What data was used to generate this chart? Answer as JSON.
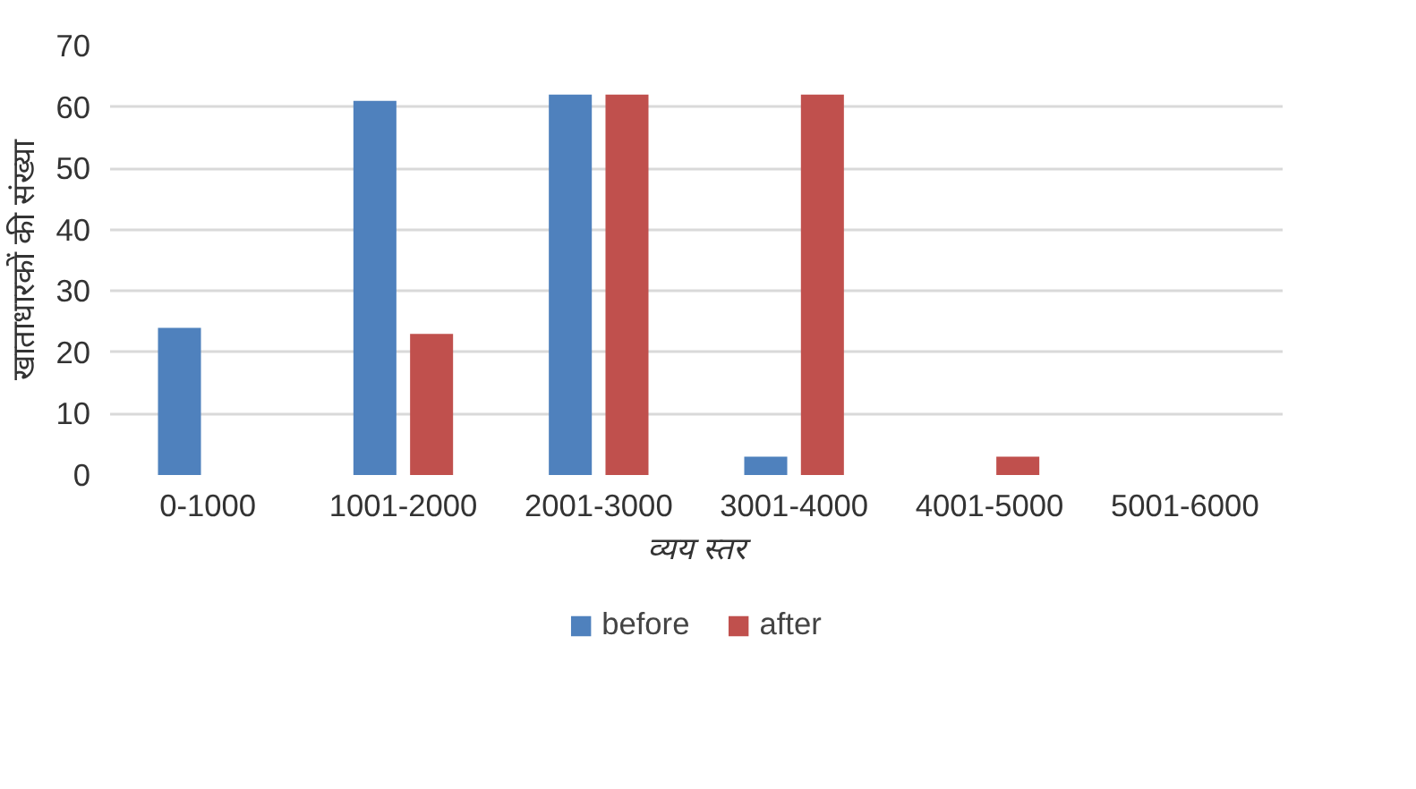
{
  "chart_data": {
    "type": "bar",
    "xlabel": "व्यय स्तर",
    "ylabel": "खाताधारकों की संख्या",
    "categories": [
      "0-1000",
      "1001-2000",
      "2001-3000",
      "3001-4000",
      "4001-5000",
      "5001-6000"
    ],
    "series": [
      {
        "name": "before",
        "color": "#4f81bd",
        "values": [
          24,
          61,
          62,
          3,
          0,
          0
        ]
      },
      {
        "name": "after",
        "color": "#c0504d",
        "values": [
          0,
          23,
          62,
          62,
          3,
          0
        ]
      }
    ],
    "ylim": [
      0,
      70
    ],
    "yticks": [
      0,
      10,
      20,
      30,
      40,
      50,
      60,
      70
    ],
    "grid": "y",
    "legend": "bottom"
  }
}
